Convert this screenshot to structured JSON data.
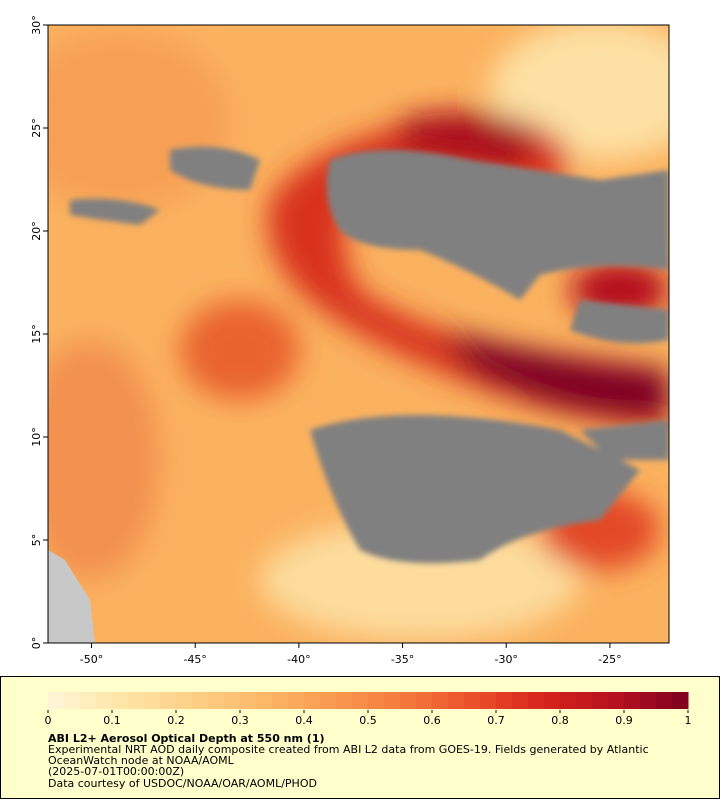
{
  "map": {
    "xlim": [
      -52.1,
      -22.15
    ],
    "ylim": [
      0,
      30
    ],
    "xticks": [
      {
        "value": -50,
        "label": "-50°"
      },
      {
        "value": -45,
        "label": "-45°"
      },
      {
        "value": -40,
        "label": "-40°"
      },
      {
        "value": -35,
        "label": "-35°"
      },
      {
        "value": -30,
        "label": "-30°"
      },
      {
        "value": -25,
        "label": "-25°"
      }
    ],
    "yticks": [
      {
        "value": 0,
        "label": "0°"
      },
      {
        "value": 5,
        "label": "5°"
      },
      {
        "value": 10,
        "label": "10°"
      },
      {
        "value": 15,
        "label": "15°"
      },
      {
        "value": 20,
        "label": "20°"
      },
      {
        "value": 25,
        "label": "25°"
      },
      {
        "value": 30,
        "label": "30°"
      }
    ]
  },
  "colorbar": {
    "range": [
      0,
      1
    ],
    "ticks": [
      0,
      0.1,
      0.2,
      0.3,
      0.4,
      0.5,
      0.6,
      0.7,
      0.8,
      0.9,
      1
    ],
    "colors": [
      "#fff5d8",
      "#fee6a8",
      "#fdd088",
      "#fcb968",
      "#f9994f",
      "#f47a3c",
      "#ea4f2a",
      "#d6221c",
      "#b5111e",
      "#7d0020"
    ]
  },
  "legend": {
    "title": "ABI L2+ Aerosol Optical Depth at 550 nm (1)",
    "lines": [
      "Experimental NRT AOD daily composite created from ABI L2 data from GOES-19. Fields generated by Atlantic",
      "OceanWatch node at NOAA/AOML",
      "(2025-07-01T00:00:00Z)",
      "Data courtesy of USDOC/NOAA/OAR/AOML/PHOD"
    ]
  }
}
